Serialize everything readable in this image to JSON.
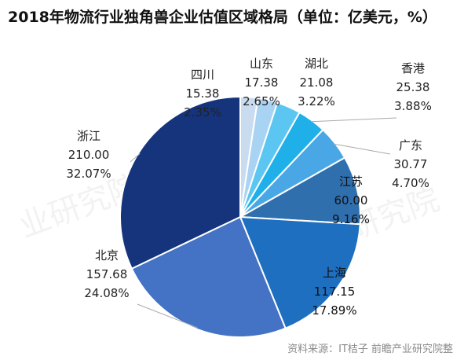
{
  "chart_data": {
    "type": "pie",
    "title": "2018年物流行业独角兽企业估值区域格局（单位：亿美元，%）",
    "slices": [
      {
        "name": "四川",
        "value": 15.38,
        "percent": "2.35%",
        "color": "#c9dcef"
      },
      {
        "name": "山东",
        "value": 17.38,
        "percent": "2.65%",
        "color": "#a9d3f3"
      },
      {
        "name": "湖北",
        "value": 21.08,
        "percent": "3.22%",
        "color": "#5bc6f2"
      },
      {
        "name": "香港",
        "value": 25.38,
        "percent": "3.88%",
        "color": "#1fb0ea"
      },
      {
        "name": "广东",
        "value": 30.77,
        "percent": "4.70%",
        "color": "#4aa7e6"
      },
      {
        "name": "江苏",
        "value": 60.0,
        "percent": "9.16%",
        "color": "#2f6fae"
      },
      {
        "name": "上海",
        "value": 117.15,
        "percent": "17.89%",
        "color": "#1f6fc0"
      },
      {
        "name": "北京",
        "value": 157.68,
        "percent": "24.08%",
        "color": "#4472c4"
      },
      {
        "name": "浙江",
        "value": 210.0,
        "percent": "32.07%",
        "color": "#15347c"
      }
    ]
  },
  "title_text": "2018年物流行业独角兽企业估值区域格局（单位：亿美元，%）",
  "source": "资料来源：IT桔子 前瞻产业研究院整"
}
